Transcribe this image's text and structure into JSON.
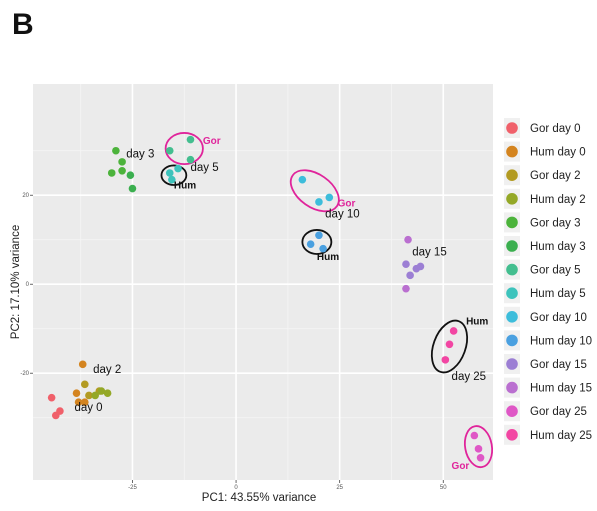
{
  "panel_label": "B",
  "chart_data": {
    "type": "scatter",
    "xlabel": "PC1: 43.55% variance",
    "ylabel": "PC2: 17.10% variance",
    "xlim": [
      -49,
      62
    ],
    "ylim": [
      -44,
      45
    ],
    "x_ticks": [
      -25,
      0,
      25,
      50
    ],
    "y_ticks": [
      20,
      0,
      -20
    ],
    "grid": true,
    "legend_position": "right",
    "series": [
      {
        "name": "Gor day 0",
        "color": "#F0606A",
        "points": [
          [
            -44.5,
            -25.5
          ],
          [
            -43.5,
            -29.5
          ],
          [
            -42.5,
            -28.5
          ]
        ]
      },
      {
        "name": "Hum day 0",
        "color": "#D4841F",
        "points": [
          [
            -37,
            -18
          ],
          [
            -38.5,
            -24.5
          ],
          [
            -36.5,
            -26.5
          ],
          [
            -38,
            -26.5
          ]
        ]
      },
      {
        "name": "Gor day 2",
        "color": "#B39B22",
        "points": [
          [
            -36.5,
            -22.5
          ],
          [
            -35.5,
            -25
          ],
          [
            -33,
            -24
          ]
        ]
      },
      {
        "name": "Hum day 2",
        "color": "#94A827",
        "points": [
          [
            -34,
            -25
          ],
          [
            -32.5,
            -24
          ],
          [
            -31,
            -24.5
          ]
        ]
      },
      {
        "name": "Gor day 3",
        "color": "#4CB33B",
        "points": [
          [
            -29,
            30
          ],
          [
            -27.5,
            27.5
          ],
          [
            -30,
            25
          ],
          [
            -27.5,
            25.5
          ]
        ]
      },
      {
        "name": "Hum day 3",
        "color": "#3BAF4F",
        "points": [
          [
            -25.5,
            24.5
          ],
          [
            -25,
            21.5
          ]
        ]
      },
      {
        "name": "Gor day 5",
        "color": "#43BE8F",
        "points": [
          [
            -11,
            32.5
          ],
          [
            -16,
            30
          ],
          [
            -11,
            28
          ]
        ]
      },
      {
        "name": "Hum day 5",
        "color": "#3DC3BC",
        "points": [
          [
            -14,
            26
          ],
          [
            -16,
            25
          ],
          [
            -15.5,
            23.5
          ]
        ]
      },
      {
        "name": "Gor day 10",
        "color": "#3DBDDB",
        "points": [
          [
            16,
            23.5
          ],
          [
            22.5,
            19.5
          ],
          [
            20,
            18.5
          ]
        ]
      },
      {
        "name": "Hum day 10",
        "color": "#4AA0E0",
        "points": [
          [
            20,
            11
          ],
          [
            18,
            9
          ],
          [
            21,
            8
          ]
        ]
      },
      {
        "name": "Gor day 15",
        "color": "#9C7FD4",
        "points": [
          [
            41,
            4.5
          ],
          [
            42,
            2
          ],
          [
            43.5,
            3.5
          ],
          [
            44.5,
            4
          ]
        ]
      },
      {
        "name": "Hum day 15",
        "color": "#BA6FD0",
        "points": [
          [
            41.5,
            10
          ],
          [
            41,
            -1
          ]
        ]
      },
      {
        "name": "Gor day 25",
        "color": "#DF57C6",
        "points": [
          [
            57.5,
            -34
          ],
          [
            58.5,
            -37
          ],
          [
            59,
            -39
          ]
        ]
      },
      {
        "name": "Hum day 25",
        "color": "#F246A3",
        "points": [
          [
            52.5,
            -10.5
          ],
          [
            51.5,
            -13.5
          ],
          [
            50.5,
            -17
          ]
        ]
      }
    ],
    "annotations": {
      "day_labels": [
        {
          "text": "day 3",
          "x": -26.5,
          "y": 28.5
        },
        {
          "text": "day 5",
          "x": -11,
          "y": 25.5
        },
        {
          "text": "day 10",
          "x": 21.5,
          "y": 15
        },
        {
          "text": "day 15",
          "x": 42.5,
          "y": 6.5
        },
        {
          "text": "day 25",
          "x": 52,
          "y": -21.5
        },
        {
          "text": "day 2",
          "x": -34.5,
          "y": -20
        },
        {
          "text": "day 0",
          "x": -39,
          "y": -28.5
        }
      ],
      "group_labels": [
        {
          "text": "Gor",
          "x": -8,
          "y": 31.5,
          "color": "#E0249B"
        },
        {
          "text": "Hum",
          "x": -15,
          "y": 21.5,
          "color": "#111111"
        },
        {
          "text": "Gor",
          "x": 24.5,
          "y": 17.5,
          "color": "#E0249B"
        },
        {
          "text": "Hum",
          "x": 19.5,
          "y": 5.5,
          "color": "#111111"
        },
        {
          "text": "Hum",
          "x": 55.5,
          "y": -9,
          "color": "#111111"
        },
        {
          "text": "Gor",
          "x": 52,
          "y": -41.5,
          "color": "#E0249B"
        }
      ],
      "ellipses": [
        {
          "cx": -12.5,
          "cy": 30.5,
          "rx": 4.5,
          "ry": 3.5,
          "rot": 0,
          "color": "#E0249B"
        },
        {
          "cx": -15,
          "cy": 24.5,
          "rx": 3,
          "ry": 2.2,
          "rot": 0,
          "color": "#111111"
        },
        {
          "cx": 19,
          "cy": 21,
          "rx": 6.5,
          "ry": 3.7,
          "rot": 35,
          "color": "#E0249B"
        },
        {
          "cx": 19.5,
          "cy": 9.5,
          "rx": 3.5,
          "ry": 2.7,
          "rot": 0,
          "color": "#111111"
        },
        {
          "cx": 51.5,
          "cy": -14,
          "rx": 6.5,
          "ry": 3.6,
          "rot": -70,
          "color": "#111111"
        },
        {
          "cx": 58.5,
          "cy": -36.5,
          "rx": 5,
          "ry": 3,
          "rot": 80,
          "color": "#E0249B"
        }
      ]
    }
  }
}
